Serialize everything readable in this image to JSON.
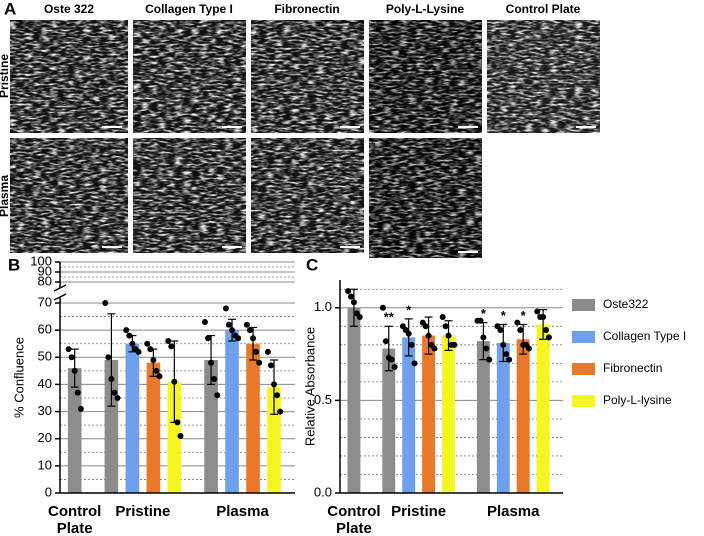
{
  "panel_a": {
    "label": "A",
    "columns": [
      "Oste 322",
      "Collagen Type I",
      "Fibronectin",
      "Poly-L-Lysine",
      "Control Plate"
    ],
    "rows": [
      "Pristine",
      "Plasma"
    ]
  },
  "chart_data": [
    {
      "type": "bar",
      "panel_label": "B",
      "y_label": "% Confluence",
      "categories": [
        "Control Plate",
        "Pristine",
        "Plasma"
      ],
      "ylim": [
        0,
        100
      ],
      "axis_break": [
        70,
        80
      ],
      "yticks": [
        0,
        10,
        20,
        30,
        40,
        50,
        60,
        70,
        80,
        90,
        100
      ],
      "minor_grid": [
        5,
        15,
        25,
        35,
        45,
        55,
        65,
        85,
        95
      ],
      "grid": true,
      "series": [
        {
          "color": "#8c8c8c",
          "values": [
            46,
            49,
            49
          ],
          "errors": [
            7,
            17,
            9
          ],
          "points": [
            [
              53,
              50,
              45,
              37,
              31
            ],
            [
              70,
              50,
              42,
              37,
              35
            ],
            [
              63,
              57,
              48,
              42,
              36
            ]
          ]
        },
        {
          "color": "#6fa0ee",
          "values": [
            null,
            55,
            60
          ],
          "errors": [
            null,
            3,
            4
          ],
          "points": [
            null,
            [
              60,
              58,
              55,
              53,
              52
            ],
            [
              68,
              62,
              60,
              58,
              57
            ]
          ]
        },
        {
          "color": "#e8792a",
          "values": [
            null,
            48,
            55
          ],
          "errors": [
            null,
            5,
            6
          ],
          "points": [
            null,
            [
              55,
              53,
              49,
              45,
              43
            ],
            [
              62,
              60,
              57,
              52,
              48
            ]
          ]
        },
        {
          "color": "#f5f522",
          "values": [
            null,
            41,
            39
          ],
          "errors": [
            null,
            15,
            10
          ],
          "points": [
            null,
            [
              56,
              54,
              41,
              26,
              21
            ],
            [
              52,
              47,
              40,
              36,
              30
            ]
          ]
        }
      ]
    },
    {
      "type": "bar",
      "panel_label": "C",
      "y_label": "Relative Absorbance",
      "categories": [
        "Control Plate",
        "Pristine",
        "Plasma"
      ],
      "ylim": [
        0,
        1.15
      ],
      "yticks": [
        {
          "value": 0,
          "label": "0.0"
        },
        {
          "value": 0.5,
          "label": "0.5"
        },
        {
          "value": 1,
          "label": "1.0"
        }
      ],
      "minor_grid": [
        0.1,
        0.2,
        0.3,
        0.4,
        0.6,
        0.7,
        0.8,
        0.9,
        1.1
      ],
      "grid": true,
      "legend": "right",
      "series": [
        {
          "name": "Oste322",
          "color": "#8c8c8c",
          "values": [
            1.0,
            0.78,
            0.82
          ],
          "errors": [
            0.1,
            0.12,
            0.1
          ],
          "points": [
            [
              1.09,
              1.06,
              1.03,
              0.97,
              0.95
            ],
            [
              1.0,
              0.82,
              0.73,
              0.72,
              0.68
            ],
            [
              0.93,
              0.93,
              0.84,
              0.78,
              0.72
            ]
          ],
          "sig": [
            null,
            "**",
            "*"
          ]
        },
        {
          "name": "Collagen Type I",
          "color": "#6fa0ee",
          "values": [
            null,
            0.84,
            0.81
          ],
          "errors": [
            null,
            0.1,
            0.1
          ],
          "points": [
            null,
            [
              0.9,
              0.88,
              0.86,
              0.8,
              0.7
            ],
            [
              0.9,
              0.88,
              0.8,
              0.75,
              0.72
            ]
          ],
          "sig": [
            null,
            "*",
            "*"
          ]
        },
        {
          "name": "Fibronectin",
          "color": "#e8792a",
          "values": [
            null,
            0.85,
            0.83
          ],
          "errors": [
            null,
            0.1,
            0.08
          ],
          "points": [
            null,
            [
              0.92,
              0.9,
              0.85,
              0.8,
              0.78
            ],
            [
              0.92,
              0.88,
              0.8,
              0.8,
              0.78
            ]
          ],
          "sig": [
            null,
            null,
            "*"
          ]
        },
        {
          "name": "Poly-L-lysine",
          "color": "#f5f522",
          "values": [
            null,
            0.85,
            0.91
          ],
          "errors": [
            null,
            0.08,
            0.08
          ],
          "points": [
            null,
            [
              0.95,
              0.9,
              0.85,
              0.8,
              0.8
            ],
            [
              0.98,
              0.95,
              0.95,
              0.88,
              0.84
            ]
          ],
          "sig": [
            null,
            null,
            null
          ]
        }
      ]
    }
  ]
}
